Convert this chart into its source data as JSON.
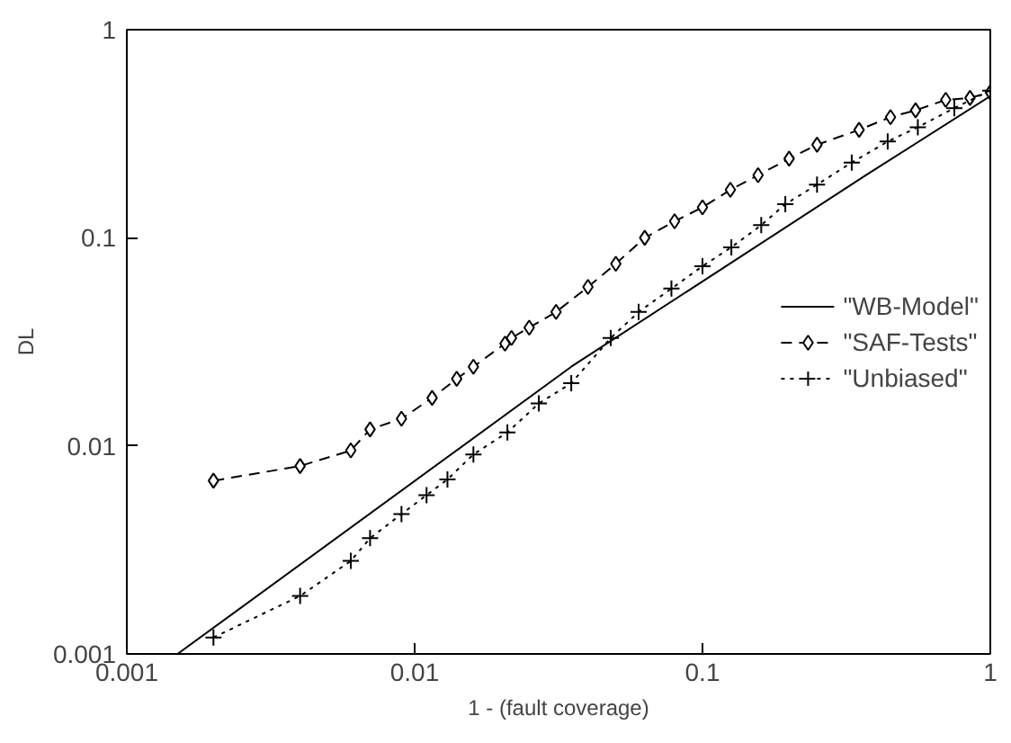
{
  "chart_data": {
    "type": "line",
    "xlabel": "1 - (fault coverage)",
    "ylabel": "DL",
    "log": "xy",
    "xlim": [
      0.001,
      1
    ],
    "ylim": [
      0.001,
      1
    ],
    "xticks": [
      0.001,
      0.01,
      0.1,
      1
    ],
    "yticks": [
      0.001,
      0.01,
      0.1,
      1
    ],
    "grid": false,
    "legend": "right",
    "series": [
      {
        "name": "\"WB-Model\"",
        "color": "#000000",
        "marker": "none",
        "line_style": "solid",
        "x": [
          0.0015,
          0.035,
          0.37,
          1
        ],
        "values": [
          0.001,
          0.024,
          0.2,
          0.48
        ]
      },
      {
        "name": "\"SAF-Tests\"",
        "color": "#000000",
        "marker": "diamond",
        "line_style": "dashed",
        "x": [
          0.002,
          0.004,
          0.006,
          0.007,
          0.009,
          0.0115,
          0.014,
          0.016,
          0.0206,
          0.0217,
          0.025,
          0.031,
          0.04,
          0.05,
          0.063,
          0.08,
          0.1,
          0.125,
          0.156,
          0.2,
          0.25,
          0.35,
          0.45,
          0.55,
          0.7,
          0.85,
          1
        ],
        "values": [
          0.0068,
          0.008,
          0.0095,
          0.012,
          0.0135,
          0.017,
          0.021,
          0.024,
          0.031,
          0.033,
          0.037,
          0.044,
          0.058,
          0.075,
          0.1,
          0.12,
          0.14,
          0.17,
          0.2,
          0.24,
          0.28,
          0.33,
          0.38,
          0.41,
          0.46,
          0.47,
          0.5
        ]
      },
      {
        "name": "\"Unbiased\"",
        "color": "#000000",
        "marker": "cross",
        "line_style": "dotted",
        "x": [
          0.002,
          0.004,
          0.006,
          0.007,
          0.009,
          0.011,
          0.013,
          0.016,
          0.021,
          0.027,
          0.035,
          0.048,
          0.06,
          0.078,
          0.1,
          0.126,
          0.16,
          0.194,
          0.25,
          0.33,
          0.44,
          0.56,
          0.75,
          1
        ],
        "values": [
          0.0012,
          0.0019,
          0.0028,
          0.0036,
          0.0047,
          0.0058,
          0.0069,
          0.0091,
          0.0116,
          0.016,
          0.02,
          0.033,
          0.044,
          0.057,
          0.073,
          0.09,
          0.115,
          0.145,
          0.18,
          0.23,
          0.29,
          0.34,
          0.42,
          0.51
        ]
      }
    ]
  }
}
